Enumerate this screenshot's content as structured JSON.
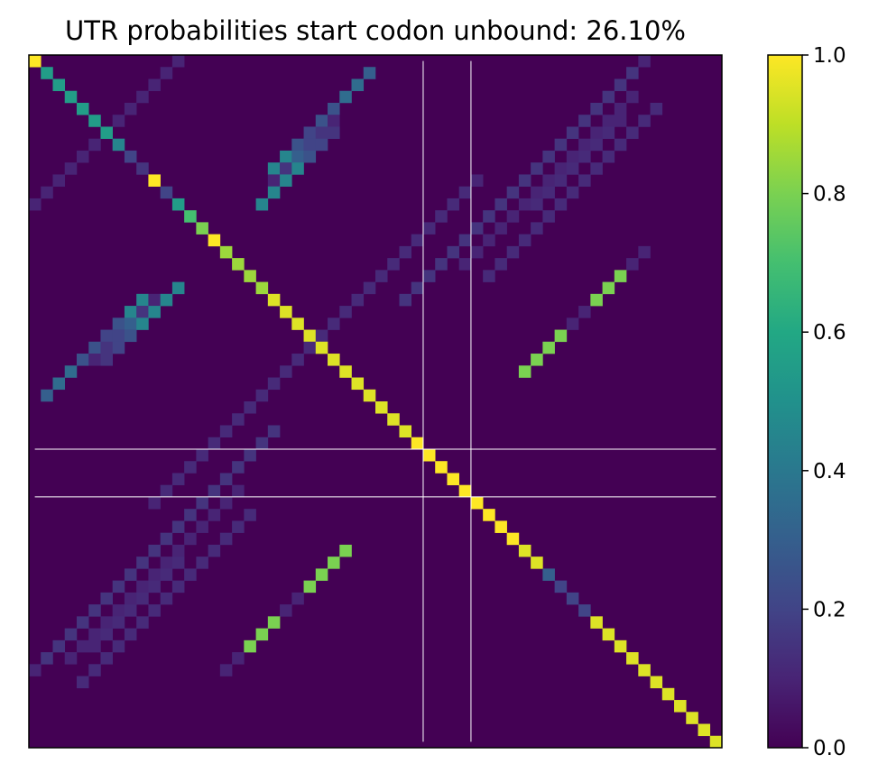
{
  "chart_data": {
    "type": "heatmap",
    "title": "UTR probabilities start codon unbound: 26.10%",
    "xlabel": "",
    "ylabel": "",
    "size": 58,
    "value_range": [
      0,
      1
    ],
    "colormap": "viridis",
    "colorbar": {
      "ticks": [
        0.0,
        0.2,
        0.4,
        0.6,
        0.8,
        1.0
      ],
      "tick_labels": [
        "0.0",
        "0.2",
        "0.4",
        "0.6",
        "0.8",
        "1.0"
      ]
    },
    "marked_indices": [
      33,
      37
    ],
    "marker_color": "#ffffff",
    "diagonal": [
      1.0,
      0.55,
      0.55,
      0.55,
      0.55,
      0.55,
      0.55,
      0.45,
      0.2,
      0.15,
      1.0,
      0.2,
      0.55,
      0.7,
      0.8,
      1.0,
      0.85,
      0.85,
      0.85,
      0.85,
      0.95,
      0.95,
      0.95,
      0.95,
      0.95,
      0.95,
      0.95,
      0.95,
      0.95,
      0.95,
      0.95,
      0.95,
      1.0,
      1.0,
      1.0,
      1.0,
      1.0,
      1.0,
      1.0,
      1.0,
      1.0,
      0.95,
      0.95,
      0.3,
      0.2,
      0.2,
      0.2,
      0.95,
      0.95,
      0.95,
      0.95,
      0.95,
      0.95,
      0.95,
      0.95,
      0.95,
      0.95,
      0.95
    ],
    "off_diagonal": [
      {
        "anti_sum": 29,
        "rows": [
          1,
          9
        ],
        "values": [
          0.3,
          0.35,
          0.35,
          0.25,
          0.25,
          0.2,
          0.25,
          0.45,
          0.45
        ]
      },
      {
        "anti_sum": 31,
        "rows": [
          6,
          12
        ],
        "values": [
          0.15,
          0.2,
          0.25,
          0.45,
          0.45,
          0.45,
          0.45
        ]
      },
      {
        "anti_sum": 30,
        "rows": [
          5,
          10
        ],
        "values": [
          0.1,
          0.15,
          0.2,
          0.3,
          0.15,
          0.1
        ]
      },
      {
        "anti_sum": 12,
        "rows": [
          0,
          12
        ],
        "values": [
          0.1,
          0.1,
          0.1,
          0.1,
          0.1,
          0.1,
          0.1,
          0.1,
          0.1,
          0.1,
          0.1,
          0.1,
          0.1
        ]
      },
      {
        "anti_sum": 51,
        "rows": [
          0,
          20
        ],
        "values": [
          0.1,
          0.15,
          0.15,
          0.15,
          0.15,
          0.15,
          0.15,
          0.15,
          0.15,
          0.15,
          0.15,
          0.15,
          0.15,
          0.15,
          0.15,
          0.15,
          0.15,
          0.15,
          0.15,
          0.15,
          0.15
        ]
      },
      {
        "anti_sum": 54,
        "rows": [
          5,
          12
        ],
        "values": [
          0.1,
          0.12,
          0.12,
          0.12,
          0.12,
          0.12,
          0.12,
          0.12
        ]
      },
      {
        "anti_sum": 47,
        "rows": [
          10,
          24
        ],
        "values": [
          0.1,
          0.12,
          0.12,
          0.12,
          0.12,
          0.12,
          0.12,
          0.12,
          0.12,
          0.12,
          0.12,
          0.12,
          0.12,
          0.12,
          0.12
        ]
      },
      {
        "anti_sum": 67,
        "rows": [
          41,
          51
        ],
        "values": [
          0.8,
          0.8,
          0.8,
          0.8,
          0.1,
          0.1,
          0.8,
          0.8,
          0.8,
          0.1,
          0.1
        ]
      },
      {
        "anti_sum": 56,
        "rows": [
          38,
          52
        ],
        "values": [
          0.12,
          0.12,
          0.12,
          0.12,
          0.12,
          0.12,
          0.12,
          0.12,
          0.12,
          0.12,
          0.12,
          0.12,
          0.12,
          0.12,
          0.12
        ]
      },
      {
        "anti_sum": 53,
        "rows": [
          36,
          50
        ],
        "values": [
          0.1,
          0.1,
          0.1,
          0.1,
          0.1,
          0.1,
          0.1,
          0.1,
          0.1,
          0.1,
          0.1,
          0.1,
          0.1,
          0.1,
          0.1
        ]
      }
    ]
  }
}
